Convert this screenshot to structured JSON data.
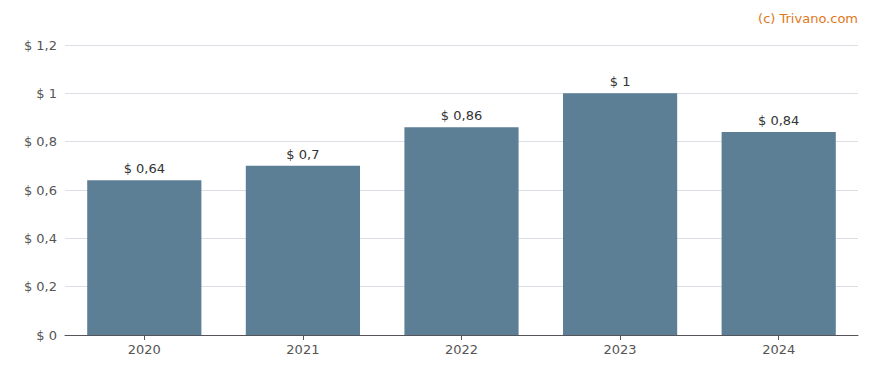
{
  "chart_data": {
    "type": "bar",
    "categories": [
      "2020",
      "2021",
      "2022",
      "2023",
      "2024"
    ],
    "values": [
      0.64,
      0.7,
      0.86,
      1.0,
      0.84
    ],
    "value_labels": [
      "$ 0,64",
      "$ 0,7",
      "$ 0,86",
      "$ 1",
      "$ 0,84"
    ],
    "data_labels": true,
    "color": "#5d7f96",
    "ylim": [
      0,
      1.2
    ],
    "yticks": [
      {
        "value": 0,
        "label": "$ 0"
      },
      {
        "value": 0.2,
        "label": "$ 0,2"
      },
      {
        "value": 0.4,
        "label": "$ 0,4"
      },
      {
        "value": 0.6,
        "label": "$ 0,6"
      },
      {
        "value": 0.8,
        "label": "$ 0,8"
      },
      {
        "value": 1.0,
        "label": "$ 1"
      },
      {
        "value": 1.2,
        "label": "$ 1,2"
      }
    ],
    "grid": true,
    "annotations": [
      {
        "text": "(c) Trivano.com",
        "color": "#e07820"
      }
    ]
  }
}
